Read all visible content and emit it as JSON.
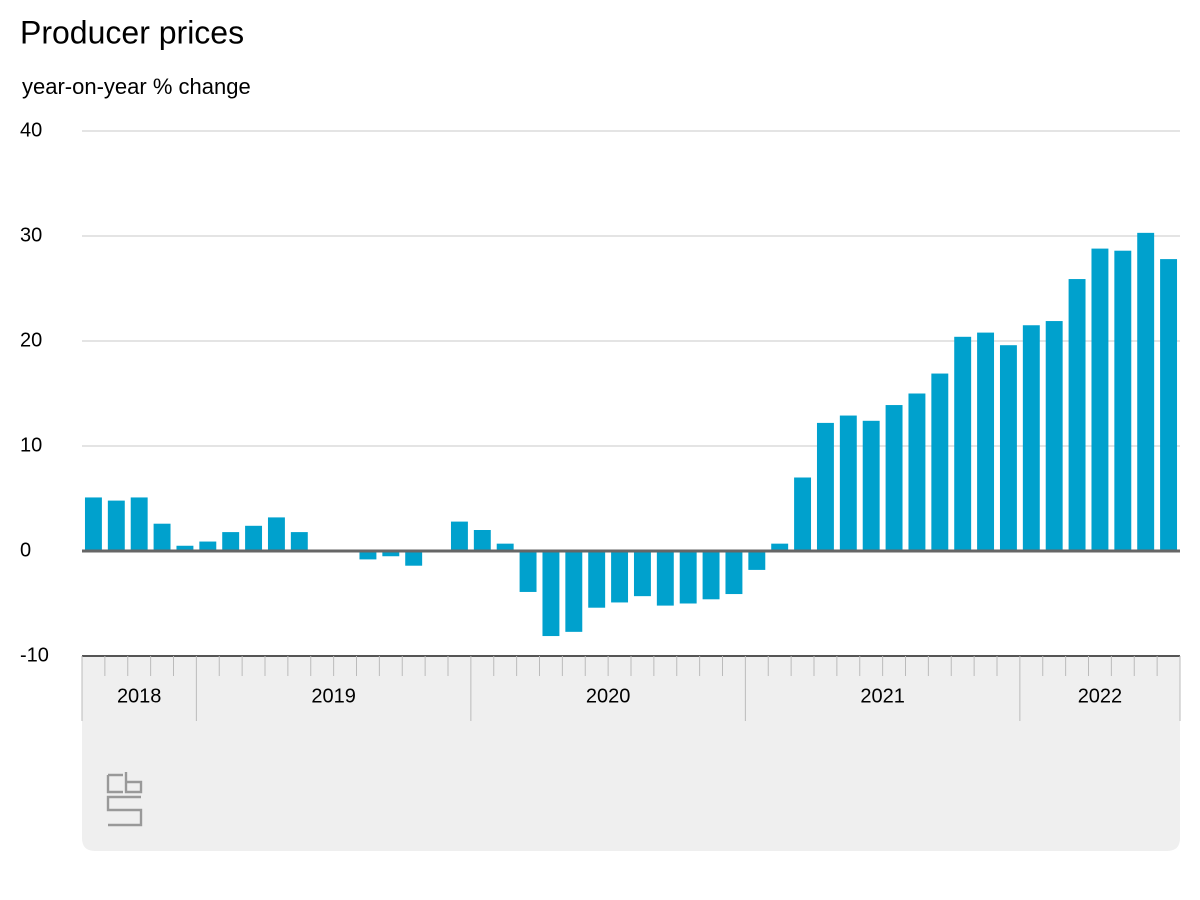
{
  "chart_data": {
    "type": "bar",
    "title": "Producer prices",
    "subtitle": "year-on-year % change",
    "color": "#00a1cd",
    "grid": true,
    "ylim": [
      -10,
      40
    ],
    "yticks": [
      -10,
      0,
      10,
      20,
      30,
      40
    ],
    "categories": [
      null,
      null,
      null,
      null,
      null,
      null,
      null,
      null,
      null,
      null,
      null,
      null,
      null,
      null,
      null,
      null,
      null,
      null,
      null,
      null,
      null,
      null,
      null,
      null,
      null,
      null,
      null,
      null,
      null,
      null,
      null,
      null,
      null,
      null,
      null,
      null,
      null,
      null,
      null,
      null,
      null,
      null,
      null,
      null,
      null,
      null,
      null,
      null
    ],
    "year_groups": [
      {
        "label": "2018",
        "months": 5
      },
      {
        "label": "2019",
        "months": 12
      },
      {
        "label": "2020",
        "months": 12
      },
      {
        "label": "2021",
        "months": 12
      },
      {
        "label": "2022",
        "months": 7
      }
    ],
    "values": [
      5.1,
      4.8,
      5.1,
      2.6,
      0.5,
      0.9,
      1.8,
      2.4,
      3.2,
      1.8,
      0.1,
      0,
      -0.8,
      -0.5,
      -1.4,
      0,
      2.8,
      2.0,
      0.7,
      -3.9,
      -8.1,
      -7.7,
      -5.4,
      -4.9,
      -4.3,
      -5.2,
      -5.0,
      -4.6,
      -4.1,
      -1.8,
      0.7,
      7.0,
      12.2,
      12.9,
      12.4,
      13.9,
      15.0,
      16.9,
      20.4,
      20.8,
      19.6,
      21.5,
      21.9,
      25.9,
      28.8,
      28.6,
      30.3,
      27.8
    ]
  }
}
